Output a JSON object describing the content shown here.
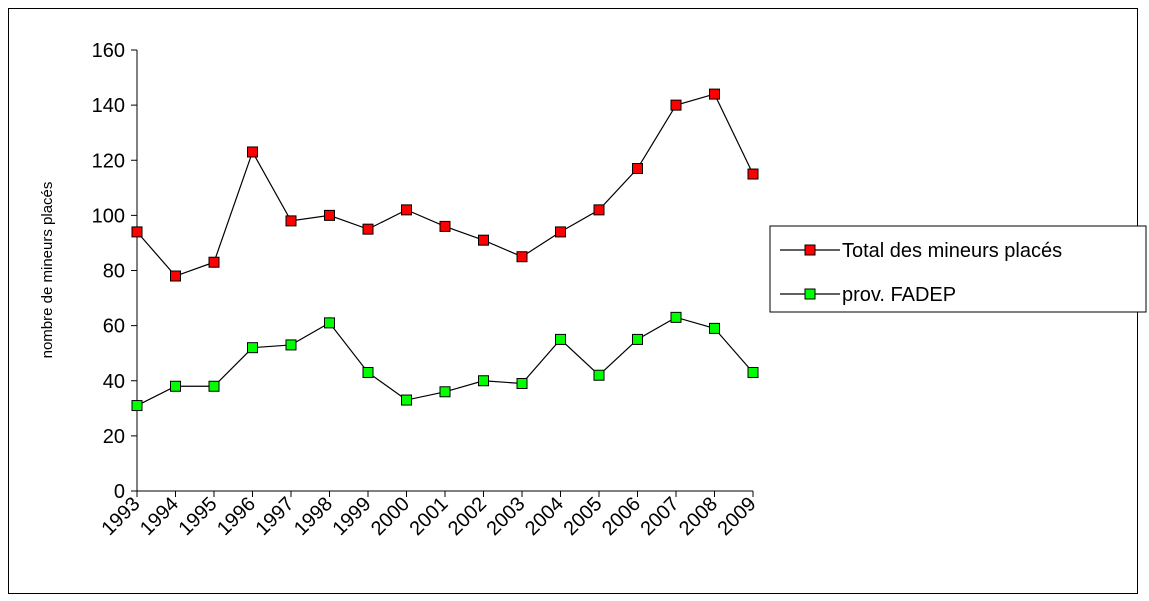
{
  "chart_data": {
    "type": "line",
    "title": "",
    "xlabel": "",
    "ylabel": "nombre de mineurs placés",
    "ylim": [
      0,
      160
    ],
    "yticks": [
      0,
      20,
      40,
      60,
      80,
      100,
      120,
      140,
      160
    ],
    "grid": false,
    "legend_position": "right",
    "categories": [
      "1993",
      "1994",
      "1995",
      "1996",
      "1997",
      "1998",
      "1999",
      "2000",
      "2001",
      "2002",
      "2003",
      "2004",
      "2005",
      "2006",
      "2007",
      "2008",
      "2009"
    ],
    "series": [
      {
        "name": "Total des mineurs placés",
        "color": "#ff0000",
        "values": [
          94,
          78,
          83,
          123,
          98,
          100,
          95,
          102,
          96,
          91,
          85,
          94,
          102,
          117,
          140,
          144,
          115
        ]
      },
      {
        "name": "prov. FADEP",
        "color": "#00ff00",
        "values": [
          31,
          38,
          38,
          52,
          53,
          61,
          43,
          33,
          36,
          40,
          39,
          55,
          42,
          55,
          63,
          59,
          43
        ]
      }
    ]
  }
}
